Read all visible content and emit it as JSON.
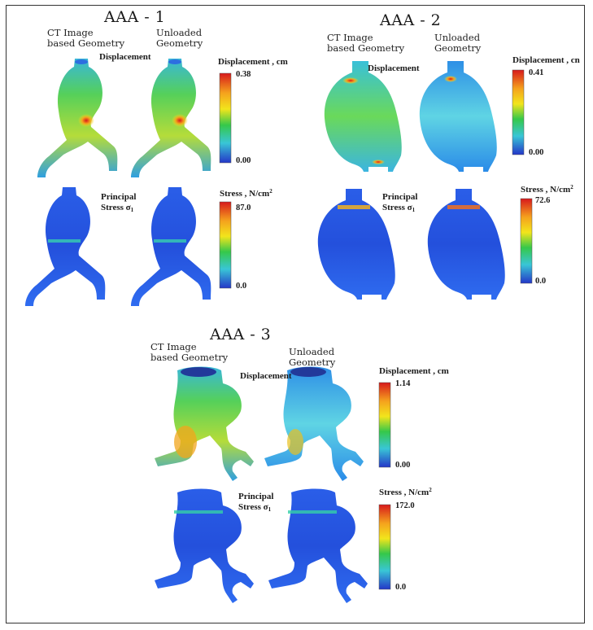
{
  "cases": [
    {
      "title": "AAA - 1",
      "col1": [
        "CT Image",
        "based Geometry"
      ],
      "col2": [
        "Unloaded",
        "Geometry"
      ],
      "rows": [
        {
          "label": [
            "Displacement"
          ],
          "cb_title": "Displacement , cm",
          "cb_max": "0.38",
          "cb_min": "0.00"
        },
        {
          "label": [
            "Principal",
            "Stress σ"
          ],
          "sub": "1",
          "cb_title": "Stress , N/cm",
          "sup": "2",
          "cb_max": "87.0",
          "cb_min": "0.0"
        }
      ]
    },
    {
      "title": "AAA - 2",
      "col1": [
        "CT Image",
        "based Geometry"
      ],
      "col2": [
        "Unloaded",
        "Geometry"
      ],
      "rows": [
        {
          "label": [
            "Displacement"
          ],
          "cb_title": "Displacement , cn",
          "cb_max": "0.41",
          "cb_min": "0.00"
        },
        {
          "label": [
            "Principal",
            "Stress σ"
          ],
          "sub": "1",
          "cb_title": "Stress , N/cm",
          "sup": "2",
          "cb_max": "72.6",
          "cb_min": "0.0"
        }
      ]
    },
    {
      "title": "AAA - 3",
      "col1": [
        "CT Image",
        "based Geometry"
      ],
      "col2": [
        "Unloaded",
        "Geometry"
      ],
      "rows": [
        {
          "label": [
            "Displacement"
          ],
          "cb_title": "Displacement , cm",
          "cb_max": "1.14",
          "cb_min": "0.00"
        },
        {
          "label": [
            "Principal",
            "Stress σ"
          ],
          "sub": "1",
          "cb_title": "Stress , N/cm",
          "sup": "2",
          "cb_max": "172.0",
          "cb_min": "0.0"
        }
      ]
    }
  ],
  "colors": {
    "jet_red": "#d7191c",
    "jet_yellow": "#f2e51c",
    "jet_green": "#35c84a",
    "jet_cyan": "#39c6d6",
    "jet_blue": "#2436c8",
    "frame": "#333333"
  }
}
